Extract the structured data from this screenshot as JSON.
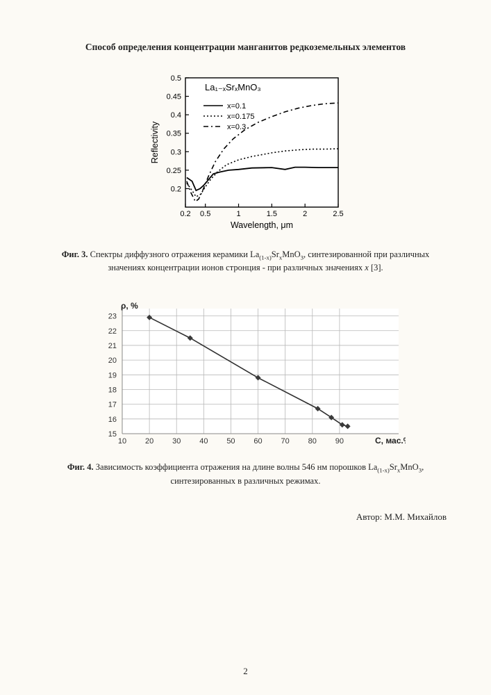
{
  "title": "Способ определения концентрации манганитов редкоземельных элементов",
  "fig3": {
    "type": "line",
    "compound": "La₁₋ₓSrₓMnO₃",
    "xlabel": "Wavelength, μm",
    "ylabel": "Reflectivity",
    "xlim": [
      0.2,
      2.5
    ],
    "ylim": [
      0.15,
      0.5
    ],
    "xticks": [
      0.2,
      0.5,
      1,
      1.5,
      2,
      2.5
    ],
    "yticks": [
      0.2,
      0.25,
      0.3,
      0.35,
      0.4,
      0.45,
      0.5
    ],
    "legend": [
      "x=0.1",
      "x=0.175",
      "x=0.3"
    ],
    "line_styles": [
      "solid",
      "dotted",
      "dashdot"
    ],
    "line_color": "#000000",
    "background_color": "#ffffff",
    "axis_fontsize": 10,
    "label_fontsize": 11,
    "series": {
      "x01": [
        [
          0.22,
          0.23
        ],
        [
          0.3,
          0.22
        ],
        [
          0.36,
          0.195
        ],
        [
          0.42,
          0.2
        ],
        [
          0.48,
          0.21
        ],
        [
          0.55,
          0.225
        ],
        [
          0.62,
          0.24
        ],
        [
          0.72,
          0.245
        ],
        [
          0.85,
          0.25
        ],
        [
          1.0,
          0.252
        ],
        [
          1.2,
          0.256
        ],
        [
          1.5,
          0.257
        ],
        [
          1.7,
          0.252
        ],
        [
          1.85,
          0.258
        ],
        [
          2.0,
          0.258
        ],
        [
          2.2,
          0.257
        ],
        [
          2.5,
          0.257
        ]
      ],
      "x0175": [
        [
          0.22,
          0.215
        ],
        [
          0.3,
          0.195
        ],
        [
          0.36,
          0.178
        ],
        [
          0.43,
          0.185
        ],
        [
          0.5,
          0.205
        ],
        [
          0.58,
          0.225
        ],
        [
          0.68,
          0.245
        ],
        [
          0.82,
          0.265
        ],
        [
          1.0,
          0.278
        ],
        [
          1.2,
          0.287
        ],
        [
          1.5,
          0.297
        ],
        [
          1.7,
          0.302
        ],
        [
          1.9,
          0.305
        ],
        [
          2.1,
          0.307
        ],
        [
          2.3,
          0.307
        ],
        [
          2.5,
          0.308
        ]
      ],
      "x03": [
        [
          0.22,
          0.22
        ],
        [
          0.28,
          0.19
        ],
        [
          0.35,
          0.165
        ],
        [
          0.4,
          0.172
        ],
        [
          0.46,
          0.195
        ],
        [
          0.55,
          0.235
        ],
        [
          0.65,
          0.273
        ],
        [
          0.78,
          0.308
        ],
        [
          0.92,
          0.335
        ],
        [
          1.1,
          0.36
        ],
        [
          1.3,
          0.38
        ],
        [
          1.5,
          0.395
        ],
        [
          1.7,
          0.408
        ],
        [
          1.9,
          0.418
        ],
        [
          2.1,
          0.425
        ],
        [
          2.3,
          0.43
        ],
        [
          2.5,
          0.432
        ]
      ]
    }
  },
  "caption3_prefix": "Фиг. 3.",
  "caption3_body_a": " Спектры диффузного отражения керамики La",
  "caption3_body_b": "Sr",
  "caption3_body_c": "MnO",
  "caption3_body_d": ", синтезированной при различных значениях концентрации ионов стронция - при различных значениях ",
  "caption3_ref": " [3].",
  "fig4": {
    "type": "line+markers",
    "xlabel": "C, мас.%",
    "ylabel": "ρ, %",
    "xlim": [
      10,
      100
    ],
    "ylim": [
      15,
      23.5
    ],
    "xticks": [
      10,
      20,
      30,
      40,
      50,
      60,
      70,
      80,
      90
    ],
    "yticks": [
      15,
      16,
      17,
      18,
      19,
      20,
      21,
      22,
      23
    ],
    "grid_color": "#b8b8b8",
    "line_color": "#303030",
    "marker_color": "#3a3a3a",
    "marker_size": 4,
    "background_color": "#ffffff",
    "points": [
      [
        20,
        22.9
      ],
      [
        35,
        21.5
      ],
      [
        60,
        18.8
      ],
      [
        82,
        16.7
      ],
      [
        87,
        16.1
      ],
      [
        91,
        15.6
      ],
      [
        93,
        15.5
      ]
    ]
  },
  "caption4_prefix": "Фиг. 4.",
  "caption4_body_a": " Зависимость коэффициента отражения на длине волны 546 нм порошков La",
  "caption4_body_b": "Sr",
  "caption4_body_c": "MnO",
  "caption4_body_d": ", синтезированных в различных режимах.",
  "author": "Автор: М.М. Михайлов",
  "page_number": "2"
}
